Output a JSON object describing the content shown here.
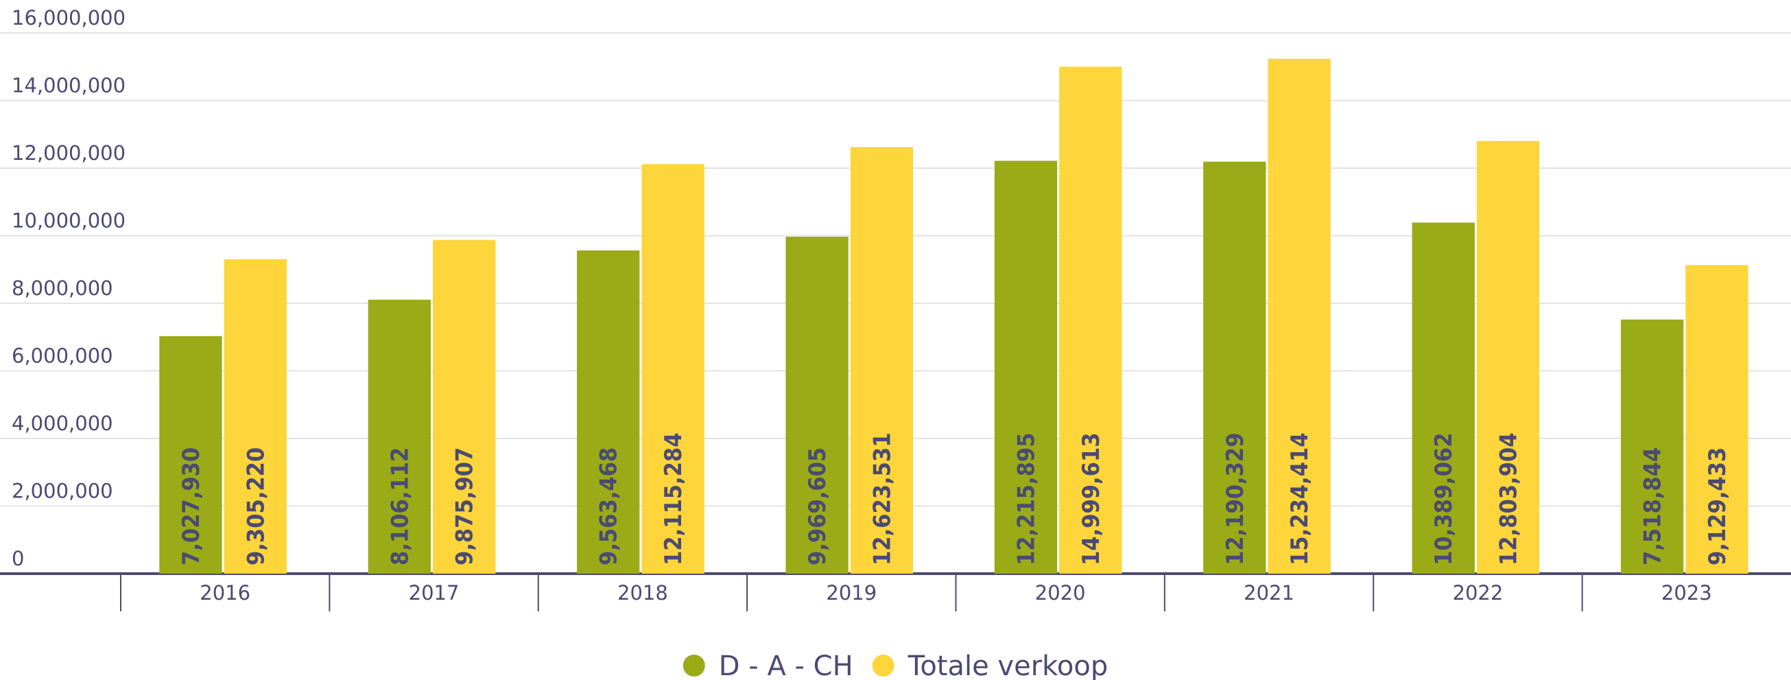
{
  "chart_data": {
    "type": "bar",
    "categories": [
      "2016",
      "2017",
      "2018",
      "2019",
      "2020",
      "2021",
      "2022",
      "2023"
    ],
    "series": [
      {
        "name": "D - A - CH",
        "color": "#9aab17",
        "values": [
          7027930,
          8106112,
          9563468,
          9969605,
          12215895,
          12190329,
          10389062,
          7518844
        ],
        "value_labels": [
          "7,027,930",
          "8,106,112",
          "9,563,468",
          "9,969,605",
          "12,215,895",
          "12,190,329",
          "10,389,062",
          "7,518,844"
        ]
      },
      {
        "name": "Totale verkoop",
        "color": "#fed53b",
        "values": [
          9305220,
          9875907,
          12115284,
          12623531,
          14999613,
          15234414,
          12803904,
          9129433
        ],
        "value_labels": [
          "9,305,220",
          "9,875,907",
          "12,115,284",
          "12,623,531",
          "14,999,613",
          "15,234,414",
          "12,803,904",
          "9,129,433"
        ]
      }
    ],
    "ylim": [
      0,
      16000000
    ],
    "yticks": [
      0,
      {
        "value": 2000000,
        "label": "2,000,000"
      },
      {
        "value": 4000000,
        "label": "4,000,000"
      },
      {
        "value": 6000000,
        "label": "6,000,000"
      },
      {
        "value": 8000000,
        "label": "8,000,000"
      },
      {
        "value": 10000000,
        "label": "10,000,000"
      },
      {
        "value": 12000000,
        "label": "12,000,000"
      },
      {
        "value": 14000000,
        "label": "14,000,000"
      },
      {
        "value": 16000000,
        "label": "16,000,000"
      }
    ],
    "grid": true,
    "legend": "bottom"
  }
}
